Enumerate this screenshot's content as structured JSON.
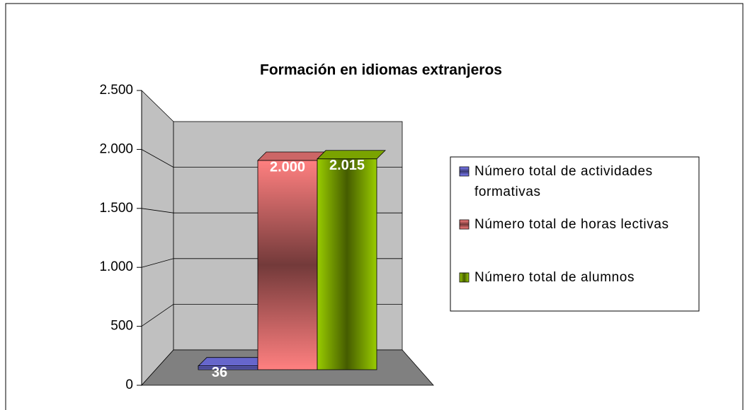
{
  "chart_data": {
    "type": "bar3d",
    "title": "Formación en idiomas extranjeros",
    "series": [
      {
        "name": "Número total de actividades formativas",
        "color": "#8080ff",
        "values": [
          36
        ],
        "value_labels": [
          "36"
        ]
      },
      {
        "name": "Número total de horas lectivas",
        "color": "#ff8080",
        "values": [
          2000
        ],
        "value_labels": [
          "2.000"
        ]
      },
      {
        "name": "Número total de alumnos",
        "color": "#99cc00",
        "values": [
          2015
        ],
        "value_labels": [
          "2.015"
        ]
      }
    ],
    "ylim": [
      0,
      2500
    ],
    "yticks": [
      0,
      500,
      {
        "value": 1000,
        "label": "1.000"
      },
      {
        "value": 1500,
        "label": "1.500"
      },
      {
        "value": 2000,
        "label": "2.000"
      },
      {
        "value": 2500,
        "label": "2.500"
      }
    ],
    "grid": true,
    "legend": "right"
  }
}
